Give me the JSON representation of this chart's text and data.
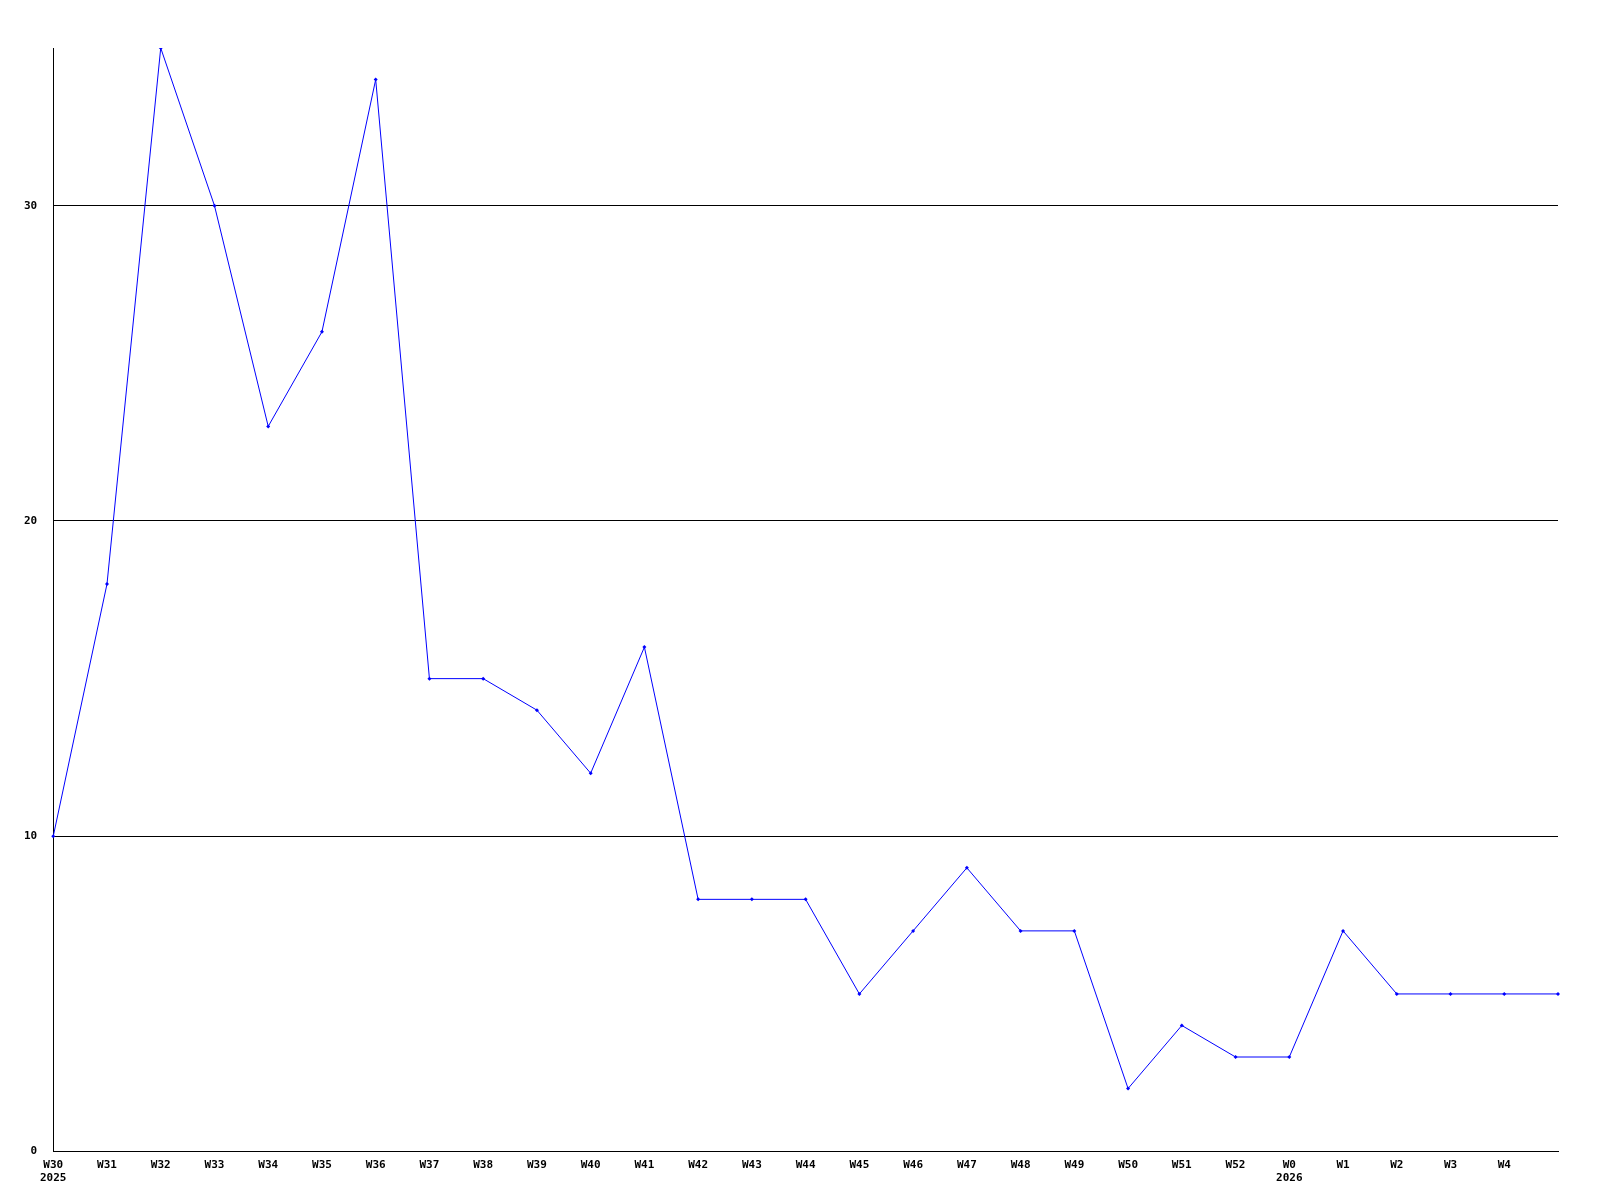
{
  "chart_data": {
    "type": "line",
    "categories": [
      "W30\n2025",
      "W31",
      "W32",
      "W33",
      "W34",
      "W35",
      "W36",
      "W37",
      "W38",
      "W39",
      "W40",
      "W41",
      "W42",
      "W43",
      "W44",
      "W45",
      "W46",
      "W47",
      "W48",
      "W49",
      "W50",
      "W51",
      "W52",
      "W0\n2026",
      "W1",
      "W2",
      "W3",
      "W4",
      null
    ],
    "series": [
      {
        "color": "#0000ff",
        "values": [
          10,
          18,
          35,
          30,
          23,
          26,
          34,
          15,
          15,
          14,
          12,
          16,
          8,
          8,
          8,
          5,
          7,
          9,
          7,
          7,
          2,
          4,
          3,
          3,
          7,
          5,
          5,
          5,
          5
        ]
      }
    ],
    "ylim": [
      0,
      35
    ],
    "yticks": [
      0,
      10,
      20,
      30
    ],
    "grid": "y",
    "legend": false,
    "marker": "diamond",
    "line_style": "solid"
  }
}
